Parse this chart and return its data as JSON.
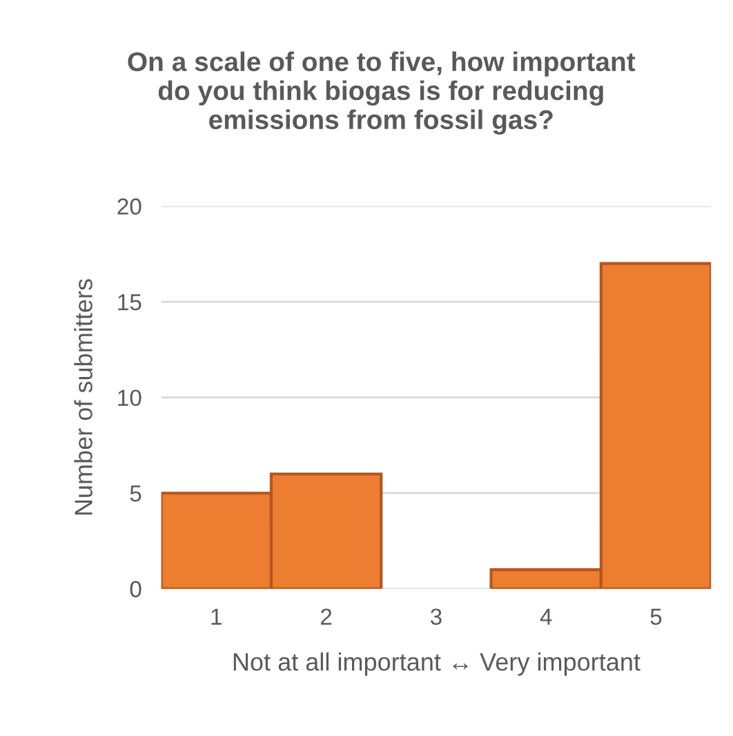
{
  "chart_data": {
    "type": "bar",
    "title": "On a scale of one to five, how important\ndo you think biogas is for reducing\nemissions from fossil gas?",
    "xlabel": "Not at all important ↔ Very important",
    "ylabel": "Number of submitters",
    "categories": [
      "1",
      "2",
      "3",
      "4",
      "5"
    ],
    "values": [
      5,
      6,
      0,
      1,
      17
    ],
    "color": "#ed7d31",
    "ylim": [
      0,
      20
    ],
    "yticks": [
      0,
      5,
      10,
      15,
      20
    ],
    "grid": "y"
  }
}
